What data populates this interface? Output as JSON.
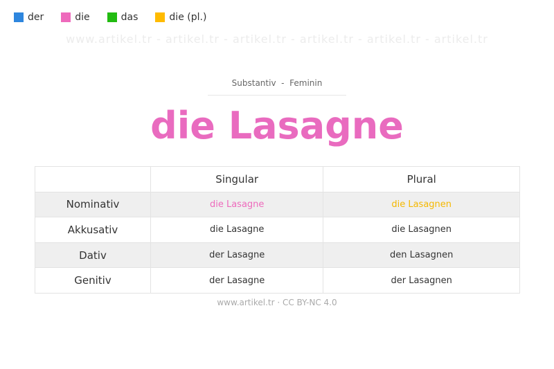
{
  "legend": [
    {
      "label": "der",
      "color": "#2e86de"
    },
    {
      "label": "die",
      "color": "#ee6abc"
    },
    {
      "label": "das",
      "color": "#22bb11"
    },
    {
      "label": "die (pl.)",
      "color": "#ffbb00"
    }
  ],
  "watermark": "www.artikel.tr - artikel.tr - artikel.tr - artikel.tr - artikel.tr - artikel.tr",
  "header": {
    "subtitle": "Substantiv  -  Feminin",
    "title": "die Lasagne",
    "title_color": "#e96bbf"
  },
  "table": {
    "headers": [
      "",
      "Singular",
      "Plural"
    ],
    "rows": [
      {
        "case": "Nominativ",
        "singular": "die Lasagne",
        "plural": "die Lasagnen",
        "singular_color": "#ee6abc",
        "plural_color": "#f5b800"
      },
      {
        "case": "Akkusativ",
        "singular": "die Lasagne",
        "plural": "die Lasagnen"
      },
      {
        "case": "Dativ",
        "singular": "der Lasagne",
        "plural": "den Lasagnen"
      },
      {
        "case": "Genitiv",
        "singular": "der Lasagne",
        "plural": "der Lasagnen"
      }
    ]
  },
  "footer": "www.artikel.tr · CC BY-NC 4.0"
}
